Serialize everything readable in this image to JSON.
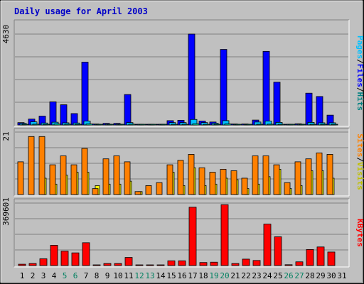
{
  "chart_data": [
    {
      "type": "bar",
      "title": "Daily usage for April 2003",
      "categories": [
        "1",
        "2",
        "3",
        "4",
        "5",
        "6",
        "7",
        "8",
        "9",
        "10",
        "11",
        "12",
        "13",
        "14",
        "15",
        "16",
        "17",
        "18",
        "19",
        "20",
        "21",
        "22",
        "23",
        "24",
        "25",
        "26",
        "27",
        "28",
        "29",
        "30",
        "31"
      ],
      "weekend_days": [
        "5",
        "6",
        "12",
        "13",
        "19",
        "20",
        "26",
        "27"
      ],
      "ytick": "4630",
      "ylim": [
        0,
        4630
      ],
      "ylabel_parts": [
        "Pages",
        "/",
        "Files",
        "/",
        "Hits"
      ],
      "series": [
        {
          "name": "Hits",
          "color": "#0000ff",
          "values": [
            120,
            300,
            450,
            1180,
            1030,
            580,
            3200,
            50,
            80,
            80,
            1550,
            20,
            20,
            20,
            220,
            240,
            4630,
            200,
            150,
            3850,
            50,
            50,
            250,
            3750,
            2180,
            30,
            60,
            1620,
            1450,
            500,
            0
          ]
        },
        {
          "name": "Files",
          "color": "#00c0ff",
          "values": [
            80,
            160,
            100,
            140,
            110,
            100,
            200,
            20,
            40,
            40,
            120,
            10,
            10,
            10,
            120,
            120,
            280,
            120,
            90,
            220,
            30,
            30,
            150,
            200,
            130,
            15,
            40,
            130,
            110,
            110,
            0
          ]
        },
        {
          "name": "Pages",
          "color": "#00ffc0",
          "values": [
            20,
            40,
            30,
            50,
            40,
            30,
            50,
            5,
            10,
            10,
            40,
            5,
            5,
            5,
            20,
            20,
            60,
            20,
            20,
            50,
            5,
            5,
            20,
            40,
            30,
            5,
            10,
            30,
            30,
            20,
            0
          ]
        }
      ]
    },
    {
      "type": "bar",
      "ytick": "21",
      "ylim": [
        0,
        21
      ],
      "ylabel_parts": [
        "Sites",
        "/",
        "Visits"
      ],
      "series": [
        {
          "name": "Visits",
          "color": "#ffff00",
          "values": [
            0,
            0,
            5.5,
            3.5,
            6.5,
            7.5,
            7.5,
            3,
            3.5,
            3.5,
            4.5,
            1,
            0,
            0,
            7.5,
            3,
            9,
            3,
            3.5,
            5.5,
            5,
            2,
            3.5,
            6,
            8.5,
            2,
            3,
            8,
            8,
            5.5,
            0
          ]
        },
        {
          "name": "Sites",
          "color": "#ff8000",
          "values": [
            11,
            19.5,
            19.5,
            10,
            13,
            10,
            15.5,
            2,
            12,
            13,
            11,
            1,
            3,
            4,
            10,
            11.5,
            13.5,
            9,
            7.5,
            8.5,
            8,
            5.5,
            13,
            13,
            10,
            4,
            11,
            12,
            14,
            13.5,
            0
          ]
        }
      ]
    },
    {
      "type": "bar",
      "ytick": "369601",
      "ylim": [
        0,
        369601
      ],
      "ylabel_parts": [
        "KBytes"
      ],
      "series": [
        {
          "name": "KBytes",
          "color": "#ff0000",
          "values": [
            8000,
            12000,
            40000,
            120000,
            85000,
            75000,
            135000,
            3000,
            12000,
            12000,
            48000,
            2000,
            3000,
            3000,
            28000,
            28000,
            345000,
            18000,
            20000,
            360000,
            12000,
            38000,
            30000,
            245000,
            170000,
            5000,
            22000,
            95000,
            110000,
            80000,
            0
          ]
        }
      ]
    }
  ]
}
